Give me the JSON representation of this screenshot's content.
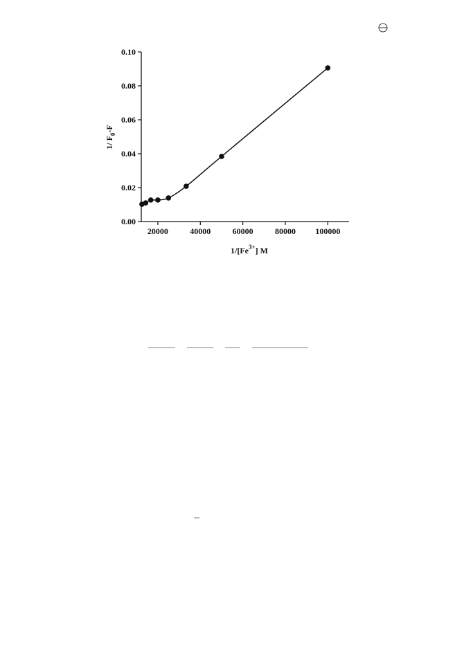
{
  "chart_data": {
    "type": "scatter-line",
    "xlabel": [
      "1/[Fe",
      "3+",
      "] M"
    ],
    "ylabel": [
      "1/ F",
      "0",
      "-F"
    ],
    "series": [
      {
        "color": "#111111",
        "x": [
          12500,
          14286,
          16667,
          20000,
          25000,
          33333,
          50000,
          100000
        ],
        "values": [
          0.0102,
          0.011,
          0.0127,
          0.0127,
          0.0139,
          0.0208,
          0.0384,
          0.0906
        ]
      }
    ],
    "xlim": [
      12200,
      110000
    ],
    "ylim": [
      0,
      0.1
    ],
    "xticks": [
      20000,
      40000,
      60000,
      80000,
      100000
    ],
    "yticks": [
      {
        "value": 0,
        "label": "0.00"
      },
      {
        "value": 0.02,
        "label": "0.02"
      },
      {
        "value": 0.04,
        "label": "0.04"
      },
      {
        "value": 0.06,
        "label": "0.06"
      },
      {
        "value": 0.08,
        "label": "0.08"
      },
      {
        "value": 0.1,
        "label": "0.10"
      }
    ]
  }
}
